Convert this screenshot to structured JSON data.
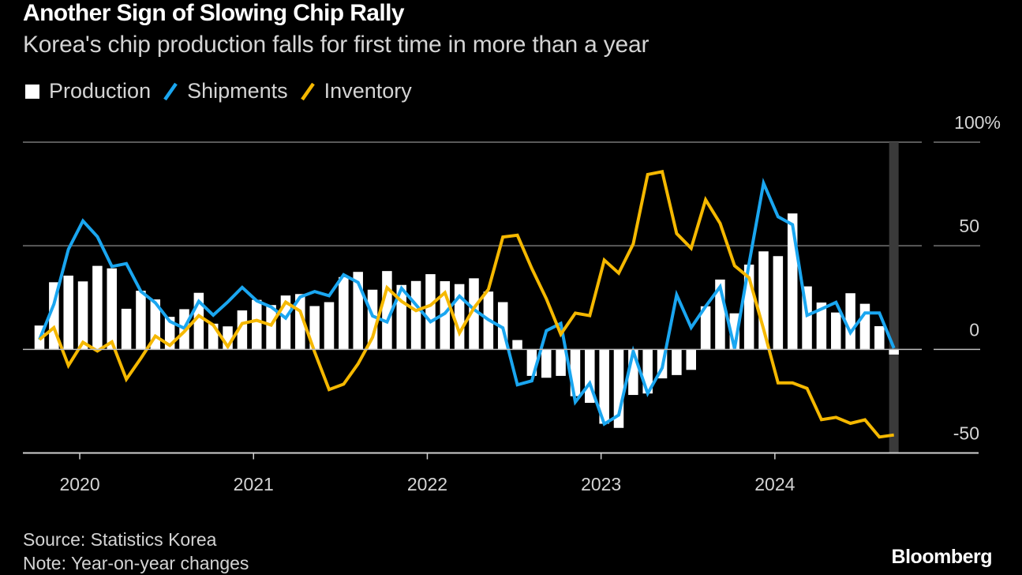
{
  "header": {
    "title": "Another Sign of Slowing Chip Rally",
    "subtitle": "Korea's chip production falls for first time in more than a year"
  },
  "legend": [
    {
      "label": "Production",
      "icon": "square-swatch",
      "color": "#ffffff"
    },
    {
      "label": "Shipments",
      "icon": "line-swatch",
      "color": "#1aa6f0"
    },
    {
      "label": "Inventory",
      "icon": "line-swatch",
      "color": "#f5b800"
    }
  ],
  "footer": {
    "source": "Source: Statistics Korea",
    "note": "Note: Year-on-year changes",
    "brand": "Bloomberg"
  },
  "chart_data": {
    "type": "bar+line",
    "title": "Another Sign of Slowing Chip Rally",
    "subtitle": "Korea's chip production falls for first time in more than a year",
    "xlabel": "",
    "ylabel": "",
    "y_unit": "%",
    "ylim": [
      -50,
      100
    ],
    "y_ticks": [
      {
        "value": 100,
        "label": "100%"
      },
      {
        "value": 50,
        "label": "50"
      },
      {
        "value": 0,
        "label": "0"
      },
      {
        "value": -50,
        "label": "-50"
      }
    ],
    "x_ticks": [
      {
        "month_index": 3,
        "label": "2020"
      },
      {
        "month_index": 15,
        "label": "2021"
      },
      {
        "month_index": 27,
        "label": "2022"
      },
      {
        "month_index": 39,
        "label": "2023"
      },
      {
        "month_index": 51,
        "label": "2024"
      }
    ],
    "grid": true,
    "legend_position": "top-left",
    "highlight": {
      "month": "2024-09",
      "description": "latest month shaded"
    },
    "x": [
      "2019-10",
      "2019-11",
      "2019-12",
      "2020-01",
      "2020-02",
      "2020-03",
      "2020-04",
      "2020-05",
      "2020-06",
      "2020-07",
      "2020-08",
      "2020-09",
      "2020-10",
      "2020-11",
      "2020-12",
      "2021-01",
      "2021-02",
      "2021-03",
      "2021-04",
      "2021-05",
      "2021-06",
      "2021-07",
      "2021-08",
      "2021-09",
      "2021-10",
      "2021-11",
      "2021-12",
      "2022-01",
      "2022-02",
      "2022-03",
      "2022-04",
      "2022-05",
      "2022-06",
      "2022-07",
      "2022-08",
      "2022-09",
      "2022-10",
      "2022-11",
      "2022-12",
      "2023-01",
      "2023-02",
      "2023-03",
      "2023-04",
      "2023-05",
      "2023-06",
      "2023-07",
      "2023-08",
      "2023-09",
      "2023-10",
      "2023-11",
      "2023-12",
      "2024-01",
      "2024-02",
      "2024-03",
      "2024-04",
      "2024-05",
      "2024-06",
      "2024-07",
      "2024-08",
      "2024-09"
    ],
    "series": [
      {
        "name": "Production",
        "kind": "bar",
        "color": "#ffffff",
        "values": [
          11.5,
          32.4,
          35.6,
          32.8,
          40.3,
          39.1,
          19.6,
          28.3,
          24.1,
          15.7,
          19.4,
          27.3,
          12.4,
          11.1,
          18.8,
          23.9,
          21.4,
          26.0,
          26.7,
          20.9,
          22.8,
          34.9,
          37.4,
          28.8,
          37.8,
          31.1,
          33.0,
          36.3,
          32.9,
          31.5,
          34.3,
          27.9,
          22.8,
          4.5,
          -12.8,
          -13.7,
          -12.8,
          -22.6,
          -25.8,
          -35.9,
          -37.9,
          -22.0,
          -21.3,
          -14.0,
          -12.4,
          -9.9,
          20.8,
          33.7,
          17.4,
          40.9,
          47.3,
          45.0,
          65.6,
          30.4,
          22.6,
          17.8,
          27.1,
          22.0,
          11.2,
          -2.5
        ]
      },
      {
        "name": "Shipments",
        "kind": "line",
        "color": "#1aa6f0",
        "values": [
          4.7,
          21.8,
          48.3,
          62.0,
          54.4,
          40.0,
          41.4,
          28.0,
          22.5,
          13.5,
          10.2,
          23.2,
          16.5,
          22.9,
          29.9,
          23.4,
          20.5,
          15.1,
          25.3,
          27.9,
          25.9,
          36.0,
          32.3,
          16.1,
          13.2,
          29.5,
          21.5,
          13.3,
          17.4,
          25.7,
          19.3,
          14.3,
          10.4,
          -17.1,
          -15.2,
          9.0,
          12.5,
          -25.4,
          -16.3,
          -36.0,
          -31.7,
          -0.9,
          -21.3,
          -8.9,
          26.3,
          10.5,
          20.7,
          30.2,
          0.3,
          41.5,
          80.2,
          64.0,
          60.2,
          16.4,
          19.5,
          22.7,
          8.0,
          17.6,
          17.6,
          0.6
        ]
      },
      {
        "name": "Inventory",
        "kind": "line",
        "color": "#f5b800",
        "values": [
          4.7,
          10.5,
          -7.8,
          3.4,
          -0.8,
          3.6,
          -14.4,
          -4.3,
          6.4,
          1.9,
          8.6,
          16.3,
          11.8,
          1.3,
          12.5,
          14.0,
          11.7,
          22.8,
          18.5,
          -1.3,
          -19.4,
          -16.8,
          -7.0,
          5.8,
          29.8,
          23.2,
          18.7,
          21.3,
          27.4,
          7.9,
          20.0,
          29.0,
          54.2,
          55.1,
          39.0,
          24.4,
          7.3,
          17.5,
          16.3,
          43.1,
          36.8,
          50.9,
          84.4,
          85.8,
          55.9,
          48.8,
          72.2,
          60.8,
          40.4,
          34.6,
          9.8,
          -16.2,
          -16.2,
          -18.8,
          -33.9,
          -32.8,
          -35.7,
          -34.0,
          -42.3,
          -41.3
        ]
      }
    ]
  }
}
